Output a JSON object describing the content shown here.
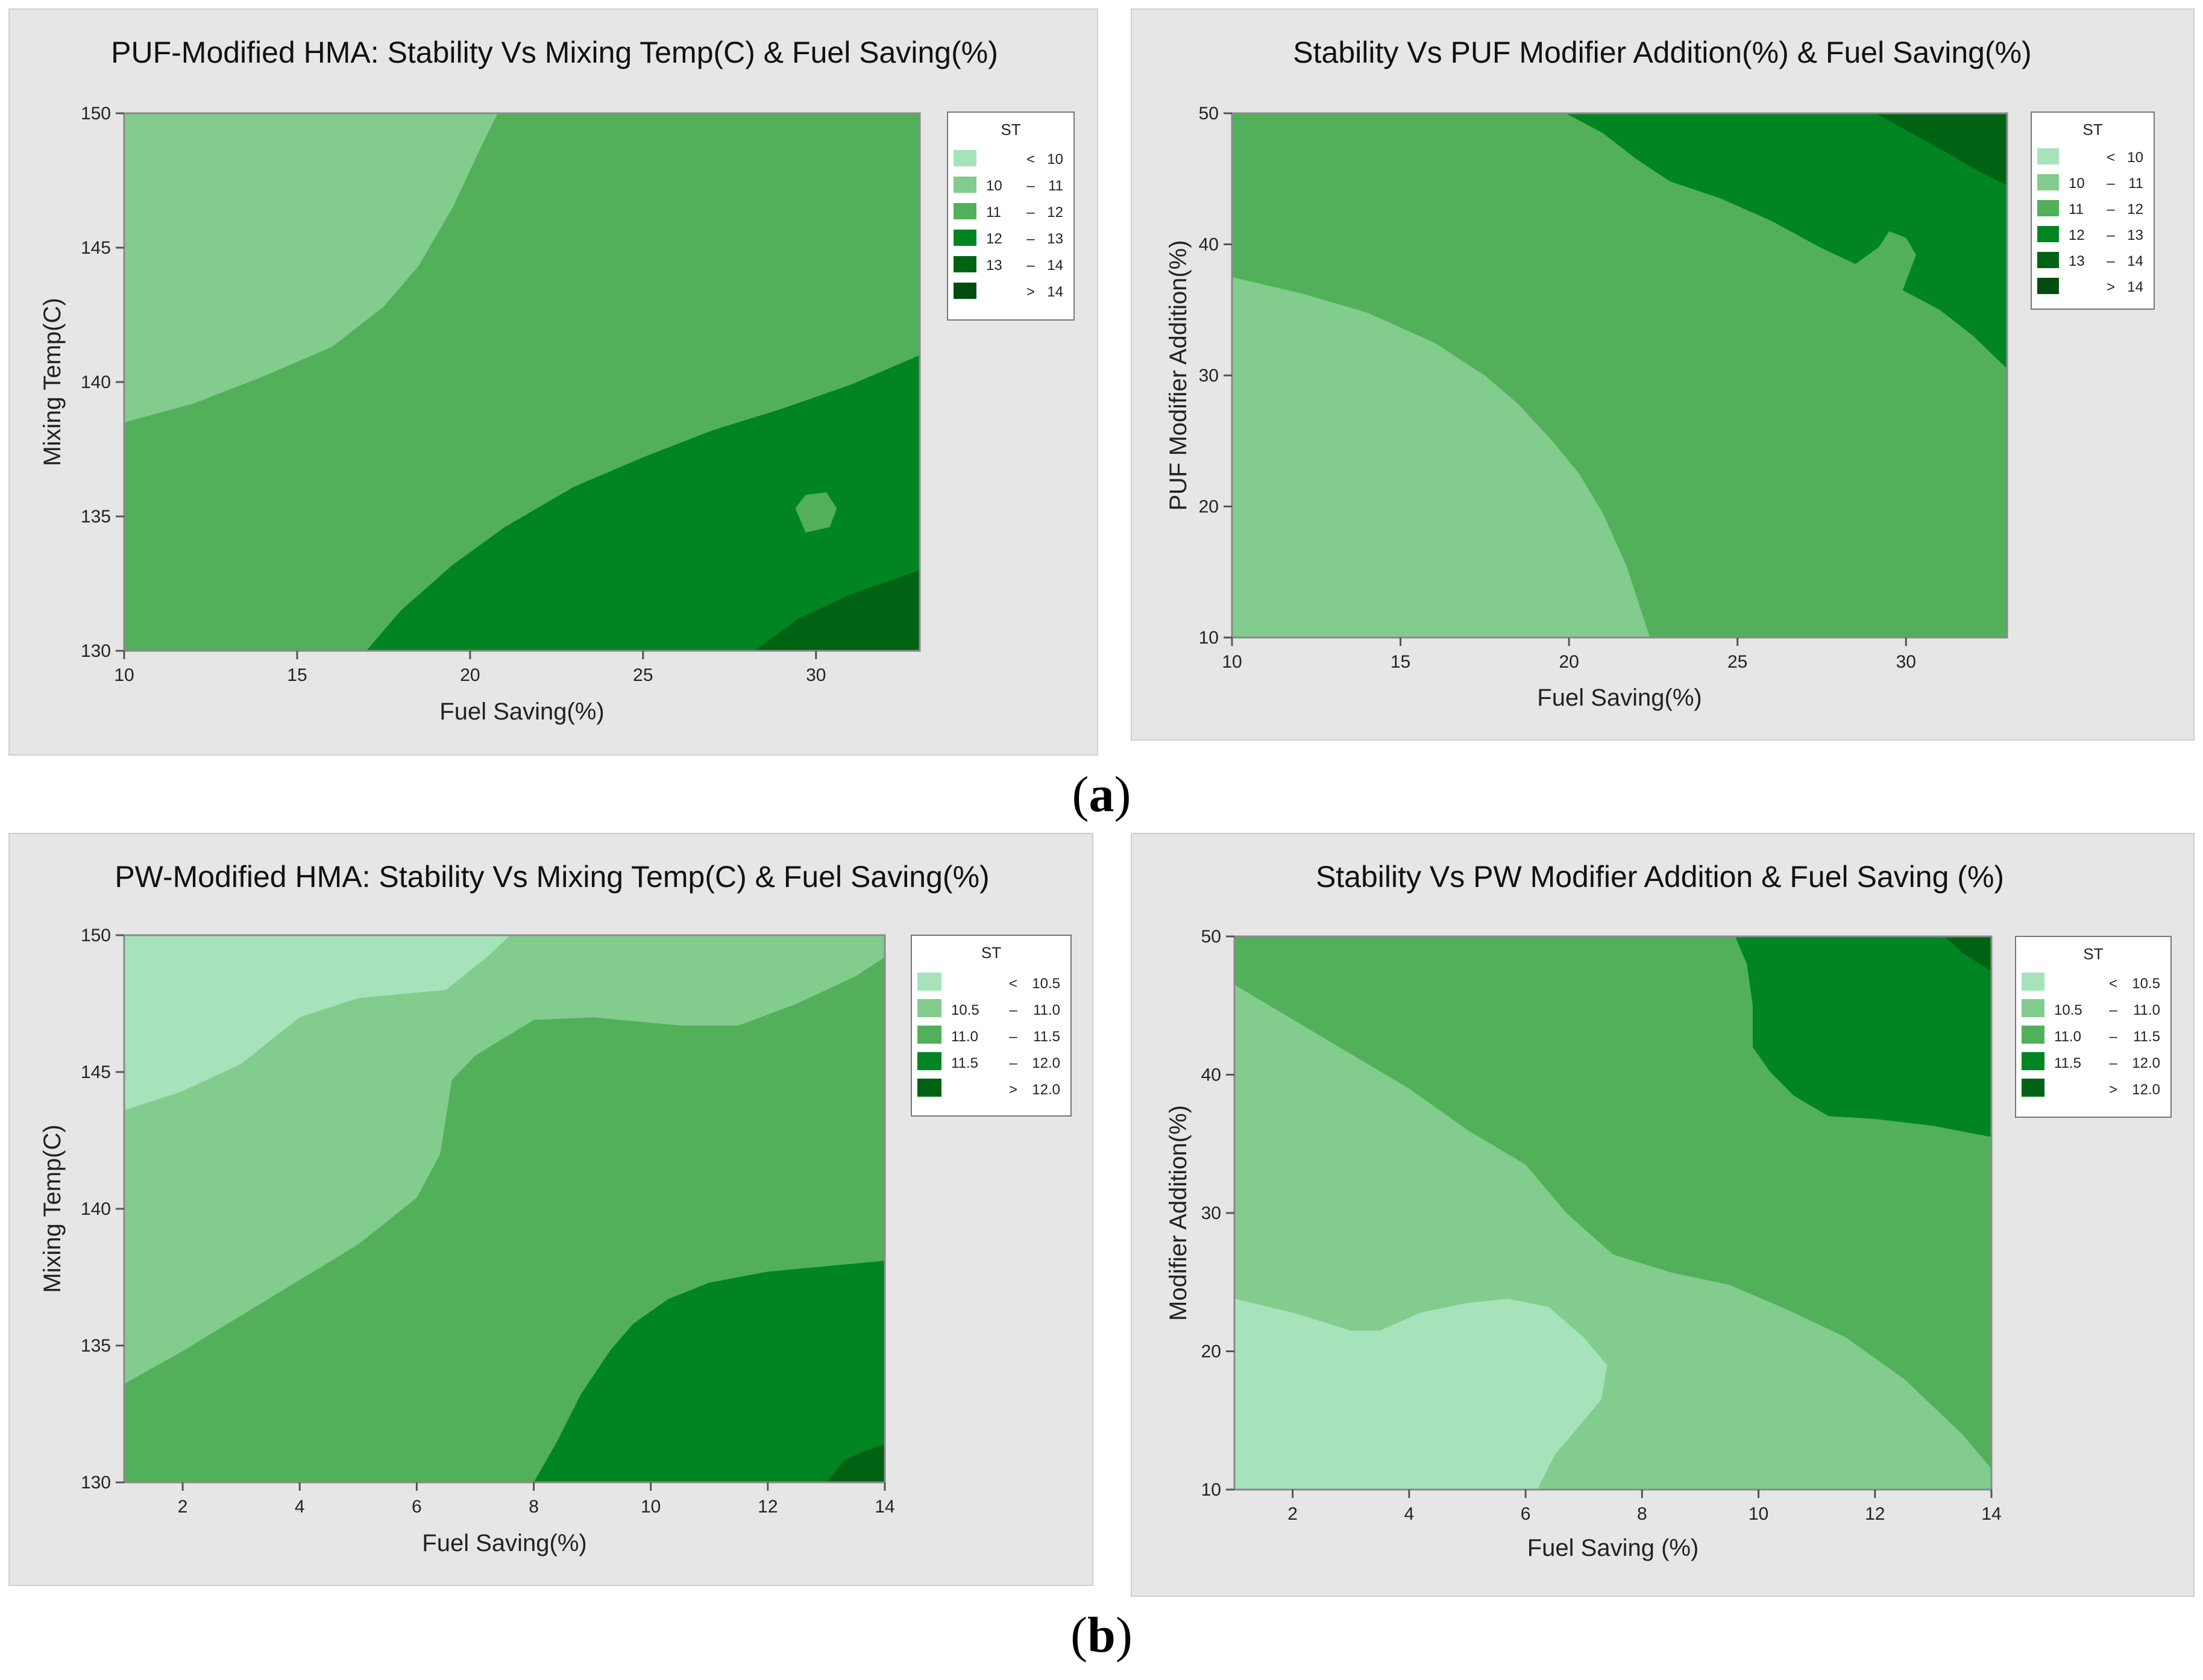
{
  "colors": {
    "panel_bg": "#e6e6e6",
    "level_1": "#a6e3bb",
    "level_2": "#82cc8e",
    "level_3": "#52b05a",
    "level_4": "#008522",
    "level_5": "#006313",
    "level_6": "#004d10"
  },
  "figure_labels": {
    "a_open": "(",
    "a_letter": "a",
    "a_close": ")",
    "b_open": "(",
    "b_letter": "b",
    "b_close": ")"
  },
  "chart_data": [
    {
      "type": "heatmap",
      "title": "PUF-Modified HMA: Stability Vs Mixing Temp(C) & Fuel Saving(%)",
      "xlabel": "Fuel Saving(%)",
      "ylabel": "Mixing Temp(C)",
      "xlim": [
        10,
        33
      ],
      "ylim": [
        130,
        150
      ],
      "xticks": [
        10,
        15,
        20,
        25,
        30
      ],
      "yticks": [
        130,
        135,
        140,
        145,
        150
      ],
      "legend_title": "ST",
      "legend_position": "right",
      "legend": [
        {
          "lo": "<",
          "hi": "10"
        },
        {
          "lo": "10",
          "sep": "–",
          "hi": "11"
        },
        {
          "lo": "11",
          "sep": "–",
          "hi": "12"
        },
        {
          "lo": "12",
          "sep": "–",
          "hi": "13"
        },
        {
          "lo": "13",
          "sep": "–",
          "hi": "14"
        },
        {
          "lo": ">",
          "hi": "14"
        }
      ],
      "background_level": 2,
      "regions": [
        {
          "level": 1,
          "points": [
            [
              10,
              150
            ],
            [
              10,
              138.5
            ],
            [
              12,
              139.2
            ],
            [
              14,
              140.2
            ],
            [
              16,
              141.3
            ],
            [
              17.5,
              142.8
            ],
            [
              18.5,
              144.3
            ],
            [
              19.5,
              146.5
            ],
            [
              20.3,
              148.7
            ],
            [
              20.8,
              150
            ]
          ]
        },
        {
          "level": 3,
          "points": [
            [
              17,
              130
            ],
            [
              18,
              131.5
            ],
            [
              19.5,
              133.2
            ],
            [
              21,
              134.6
            ],
            [
              23,
              136.1
            ],
            [
              25,
              137.2
            ],
            [
              27,
              138.2
            ],
            [
              29,
              139
            ],
            [
              31,
              139.9
            ],
            [
              33,
              141
            ],
            [
              33,
              130
            ]
          ]
        },
        {
          "level": 2,
          "points": [
            [
              29.4,
              135.3
            ],
            [
              29.7,
              135.8
            ],
            [
              30.3,
              135.9
            ],
            [
              30.6,
              135.3
            ],
            [
              30.4,
              134.6
            ],
            [
              29.7,
              134.4
            ]
          ]
        },
        {
          "level": 4,
          "points": [
            [
              28.2,
              130
            ],
            [
              29.5,
              131.2
            ],
            [
              31,
              132.1
            ],
            [
              33,
              133
            ],
            [
              33,
              130
            ]
          ]
        }
      ]
    },
    {
      "type": "heatmap",
      "title": "Stability Vs PUF Modifier Addition(%) & Fuel Saving(%)",
      "xlabel": "Fuel Saving(%)",
      "ylabel": "PUF Modifier Addition(%)",
      "xlim": [
        10,
        33
      ],
      "ylim": [
        10,
        50
      ],
      "xticks": [
        10,
        15,
        20,
        25,
        30
      ],
      "yticks": [
        10,
        20,
        30,
        40,
        50
      ],
      "legend_title": "ST",
      "legend_position": "right",
      "legend": [
        {
          "lo": "<",
          "hi": "10"
        },
        {
          "lo": "10",
          "sep": "–",
          "hi": "11"
        },
        {
          "lo": "11",
          "sep": "–",
          "hi": "12"
        },
        {
          "lo": "12",
          "sep": "–",
          "hi": "13"
        },
        {
          "lo": "13",
          "sep": "–",
          "hi": "14"
        },
        {
          "lo": ">",
          "hi": "14"
        }
      ],
      "background_level": 2,
      "regions": [
        {
          "level": 1,
          "points": [
            [
              10,
              10
            ],
            [
              10,
              37.5
            ],
            [
              12,
              36.3
            ],
            [
              14,
              34.8
            ],
            [
              16,
              32.5
            ],
            [
              17.5,
              30
            ],
            [
              18.5,
              27.8
            ],
            [
              19.5,
              25
            ],
            [
              20.3,
              22.5
            ],
            [
              21,
              19.5
            ],
            [
              21.7,
              15.5
            ],
            [
              22.4,
              10
            ]
          ]
        },
        {
          "level": 3,
          "points": [
            [
              19.9,
              50
            ],
            [
              21,
              48.5
            ],
            [
              22,
              46.5
            ],
            [
              23,
              44.8
            ],
            [
              24.5,
              43.5
            ],
            [
              26,
              41.8
            ],
            [
              27.5,
              39.7
            ],
            [
              28.5,
              38.5
            ],
            [
              29.2,
              39.8
            ],
            [
              29.5,
              41
            ],
            [
              30,
              40.5
            ],
            [
              30.3,
              39.2
            ],
            [
              29.9,
              36.5
            ],
            [
              31,
              35
            ],
            [
              32,
              33
            ],
            [
              33,
              30.5
            ],
            [
              33,
              50
            ]
          ]
        },
        {
          "level": 4,
          "points": [
            [
              29.1,
              50
            ],
            [
              30,
              48.7
            ],
            [
              31,
              47.3
            ],
            [
              32,
              45.8
            ],
            [
              33,
              44.5
            ],
            [
              33,
              50
            ]
          ]
        }
      ]
    },
    {
      "type": "heatmap",
      "title": "PW-Modified HMA: Stability Vs Mixing Temp(C) & Fuel Saving(%)",
      "xlabel": "Fuel Saving(%)",
      "ylabel": "Mixing Temp(C)",
      "xlim": [
        1,
        14
      ],
      "ylim": [
        130,
        150
      ],
      "xticks": [
        2,
        4,
        6,
        8,
        10,
        12,
        14
      ],
      "yticks": [
        130,
        135,
        140,
        145,
        150
      ],
      "legend_title": "ST",
      "legend_position": "right",
      "legend": [
        {
          "lo": "<",
          "hi": "10.5"
        },
        {
          "lo": "10.5",
          "sep": "–",
          "hi": "11.0"
        },
        {
          "lo": "11.0",
          "sep": "–",
          "hi": "11.5"
        },
        {
          "lo": "11.5",
          "sep": "–",
          "hi": "12.0"
        },
        {
          "lo": ">",
          "hi": "12.0"
        }
      ],
      "background_level": 1,
      "regions": [
        {
          "level": 0,
          "points": [
            [
              1,
              150
            ],
            [
              1,
              143.6
            ],
            [
              2,
              144.3
            ],
            [
              3,
              145.3
            ],
            [
              4,
              147
            ],
            [
              5,
              147.7
            ],
            [
              6.5,
              148
            ],
            [
              7.2,
              149.2
            ],
            [
              7.6,
              150
            ]
          ]
        },
        {
          "level": 2,
          "points": [
            [
              1,
              130
            ],
            [
              1,
              133.6
            ],
            [
              2,
              134.8
            ],
            [
              3,
              136.1
            ],
            [
              4,
              137.4
            ],
            [
              5,
              138.7
            ],
            [
              6,
              140.4
            ],
            [
              6.4,
              142
            ],
            [
              6.6,
              144.7
            ],
            [
              7,
              145.6
            ],
            [
              8,
              146.9
            ],
            [
              9,
              147
            ],
            [
              10.5,
              146.7
            ],
            [
              11.5,
              146.7
            ],
            [
              12.5,
              147.5
            ],
            [
              13.5,
              148.5
            ],
            [
              14,
              149.2
            ],
            [
              14,
              130
            ]
          ]
        },
        {
          "level": 3,
          "points": [
            [
              8,
              130
            ],
            [
              8.4,
              131.5
            ],
            [
              8.8,
              133.2
            ],
            [
              9.3,
              134.8
            ],
            [
              9.7,
              135.8
            ],
            [
              10.3,
              136.7
            ],
            [
              11,
              137.3
            ],
            [
              12,
              137.7
            ],
            [
              13,
              137.9
            ],
            [
              14,
              138.1
            ],
            [
              14,
              130
            ]
          ]
        },
        {
          "level": 4,
          "points": [
            [
              13,
              130
            ],
            [
              13.3,
              130.8
            ],
            [
              13.6,
              131.1
            ],
            [
              14,
              131.4
            ],
            [
              14,
              130
            ]
          ]
        }
      ]
    },
    {
      "type": "heatmap",
      "title": "Stability Vs PW Modifier Addition & Fuel Saving (%)",
      "xlabel": "Fuel Saving (%)",
      "ylabel": "Modifier Addition(%)",
      "xlim": [
        1,
        14
      ],
      "ylim": [
        10,
        50
      ],
      "xticks": [
        2,
        4,
        6,
        8,
        10,
        12,
        14
      ],
      "yticks": [
        10,
        20,
        30,
        40,
        50
      ],
      "legend_title": "ST",
      "legend_position": "right",
      "legend": [
        {
          "lo": "<",
          "hi": "10.5"
        },
        {
          "lo": "10.5",
          "sep": "–",
          "hi": "11.0"
        },
        {
          "lo": "11.0",
          "sep": "–",
          "hi": "11.5"
        },
        {
          "lo": "11.5",
          "sep": "–",
          "hi": "12.0"
        },
        {
          "lo": ">",
          "hi": "12.0"
        }
      ],
      "background_level": 2,
      "regions": [
        {
          "level": 1,
          "points": [
            [
              1,
              10
            ],
            [
              1,
              46.5
            ],
            [
              2,
              44
            ],
            [
              3,
              41.5
            ],
            [
              4,
              39
            ],
            [
              5,
              36
            ],
            [
              6,
              33.5
            ],
            [
              6.7,
              30
            ],
            [
              7.5,
              27
            ],
            [
              8.5,
              25.7
            ],
            [
              9.5,
              24.8
            ],
            [
              10.5,
              23
            ],
            [
              11.5,
              21
            ],
            [
              12.5,
              18
            ],
            [
              13.5,
              14
            ],
            [
              14,
              11.5
            ],
            [
              14,
              10
            ]
          ]
        },
        {
          "level": 0,
          "points": [
            [
              1,
              10
            ],
            [
              1,
              23.8
            ],
            [
              2,
              22.8
            ],
            [
              3,
              21.5
            ],
            [
              3.5,
              21.5
            ],
            [
              4.2,
              22.8
            ],
            [
              5,
              23.5
            ],
            [
              5.7,
              23.8
            ],
            [
              6.4,
              23.2
            ],
            [
              7,
              21
            ],
            [
              7.4,
              19
            ],
            [
              7.3,
              16.5
            ],
            [
              6.8,
              14
            ],
            [
              6.5,
              12.5
            ],
            [
              6.2,
              10
            ]
          ]
        },
        {
          "level": 3,
          "points": [
            [
              9.6,
              50
            ],
            [
              9.8,
              48
            ],
            [
              9.9,
              45
            ],
            [
              9.9,
              42
            ],
            [
              10.2,
              40.2
            ],
            [
              10.6,
              38.5
            ],
            [
              11.2,
              37
            ],
            [
              12,
              36.8
            ],
            [
              13,
              36.3
            ],
            [
              14,
              35.5
            ],
            [
              14,
              50
            ]
          ]
        },
        {
          "level": 4,
          "points": [
            [
              13.2,
              50
            ],
            [
              13.5,
              48.8
            ],
            [
              14,
              47.5
            ],
            [
              14,
              50
            ]
          ]
        }
      ]
    }
  ]
}
